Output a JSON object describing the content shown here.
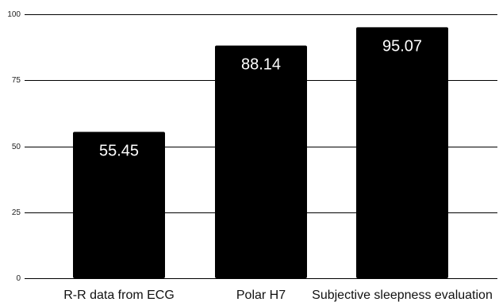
{
  "chart_data": {
    "type": "bar",
    "title": "",
    "xlabel": "",
    "ylabel": "",
    "categories": [
      "R-R data from ECG",
      "Polar H7",
      "Subjective sleepness evaluation"
    ],
    "values": [
      55.45,
      88.14,
      95.07
    ],
    "value_labels": [
      "55.45",
      "88.14",
      "95.07"
    ],
    "ylim": [
      0,
      100
    ],
    "yticks": [
      0,
      25,
      50,
      75,
      100
    ],
    "grid": true,
    "legend": "none",
    "colors": {
      "bar": "#000000",
      "grid": "#000000",
      "data_label": "#ffffff",
      "background": "#ffffff"
    }
  }
}
